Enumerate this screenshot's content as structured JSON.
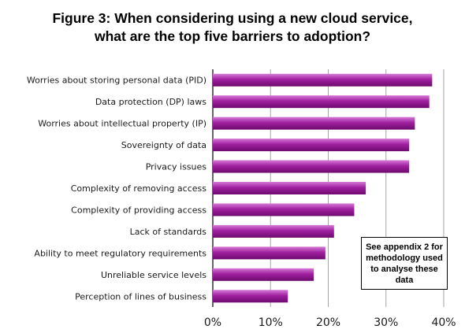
{
  "title_line1": "Figure 3: When considering using a new cloud service,",
  "title_line2": "what are the top five barriers to adoption?",
  "note": "See appendix 2 for methodology used to analyse these data",
  "colors": {
    "bar_light": "#d67ad6",
    "bar_mid": "#a020a0",
    "bar_dark": "#6e0a6e",
    "grid": "#a6a6a6"
  },
  "chart_data": {
    "type": "bar",
    "orientation": "horizontal",
    "title": "Figure 3: When considering using a new cloud service, what are the top five barriers to adoption?",
    "categories": [
      "Worries about storing personal data (PID)",
      "Data protection (DP) laws",
      "Worries about intellectual property (IP)",
      "Sovereignty of data",
      "Privacy issues",
      "Complexity of removing access",
      "Complexity of providing access",
      "Lack of standards",
      "Ability to meet regulatory requirements",
      "Unreliable service levels",
      "Perception of lines of business"
    ],
    "values": [
      38,
      37.5,
      35,
      34,
      34,
      26.5,
      24.5,
      21,
      19.5,
      17.5,
      13
    ],
    "xlim": [
      0,
      40
    ],
    "xticks": [
      0,
      10,
      20,
      30,
      40
    ],
    "xtick_labels": [
      "0%",
      "10%",
      "20%",
      "30%",
      "40%"
    ],
    "grid": true
  }
}
